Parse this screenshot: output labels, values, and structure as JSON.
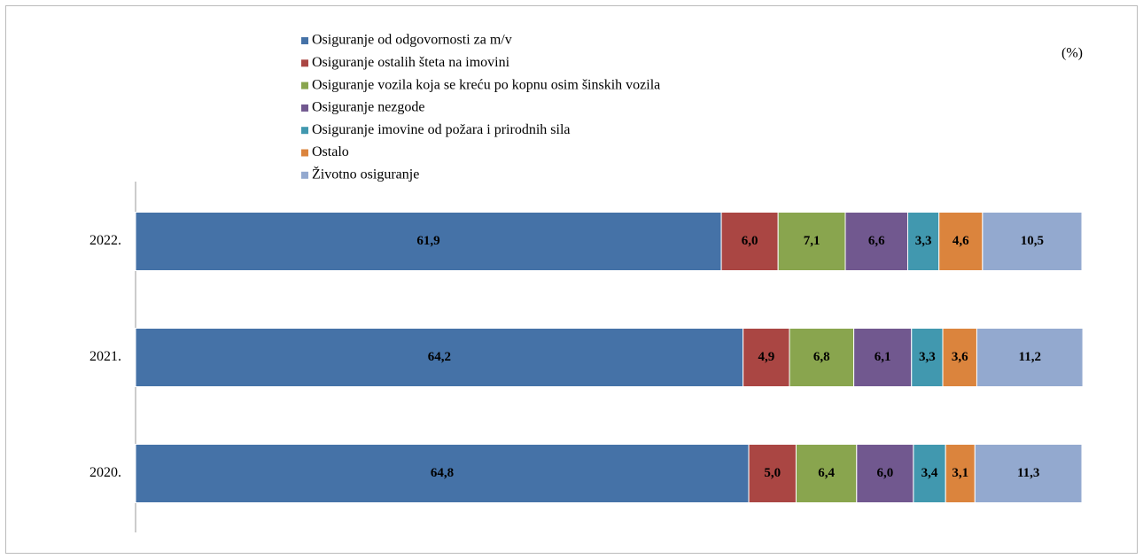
{
  "chart_data": {
    "type": "stacked-bar-horizontal",
    "unit": "(%)",
    "categories": [
      "2022.",
      "2021.",
      "2020."
    ],
    "xlim": [
      0,
      100
    ],
    "legend": "top",
    "series": [
      {
        "name": "Osiguranje od odgovornosti za m/v",
        "color": "#4572a7",
        "values": [
          61.9,
          64.2,
          64.8
        ],
        "value_labels": [
          "61,9",
          "64,2",
          "64,8"
        ]
      },
      {
        "name": "Osiguranje ostalih šteta na imovini",
        "color": "#aa4643",
        "values": [
          6.0,
          4.9,
          5.0
        ],
        "value_labels": [
          "6,0",
          "4,9",
          "5,0"
        ]
      },
      {
        "name": "Osiguranje vozila koja se kreću po kopnu osim šinskih vozila",
        "color": "#89a54e",
        "values": [
          7.1,
          6.8,
          6.4
        ],
        "value_labels": [
          "7,1",
          "6,8",
          "6,4"
        ]
      },
      {
        "name": "Osiguranje nezgode",
        "color": "#71588f",
        "values": [
          6.6,
          6.1,
          6.0
        ],
        "value_labels": [
          "6,6",
          "6,1",
          "6,0"
        ]
      },
      {
        "name": "Osiguranje imovine od požara i prirodnih sila",
        "color": "#4198af",
        "values": [
          3.3,
          3.3,
          3.4
        ],
        "value_labels": [
          "3,3",
          "3,3",
          "3,4"
        ]
      },
      {
        "name": "Ostalo",
        "color": "#db843d",
        "values": [
          4.6,
          3.6,
          3.1
        ],
        "value_labels": [
          "4,6",
          "3,6",
          "3,1"
        ]
      },
      {
        "name": "Životno osiguranje",
        "color": "#93a9cf",
        "values": [
          10.5,
          11.2,
          11.3
        ],
        "value_labels": [
          "10,5",
          "11,2",
          "11,3"
        ]
      }
    ]
  }
}
